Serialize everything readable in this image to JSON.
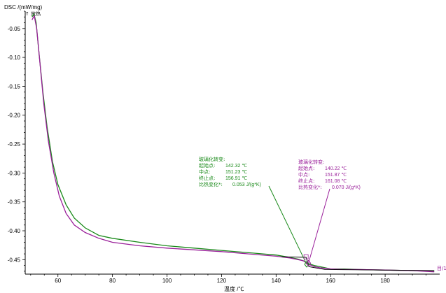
{
  "chart_data": {
    "type": "line",
    "ylabel": "DSC /(mW/mg)",
    "exo_label": "↑ 放热",
    "xlabel": "温度 /℃",
    "xlim": [
      48,
      200
    ],
    "ylim": [
      -0.475,
      -0.02
    ],
    "x_ticks": [
      60,
      80,
      100,
      120,
      140,
      160,
      180
    ],
    "y_ticks": [
      -0.05,
      -0.1,
      -0.15,
      -0.2,
      -0.25,
      -0.3,
      -0.35,
      -0.4,
      -0.45
    ],
    "x_tick_labels": [
      "60",
      "80",
      "100",
      "120",
      "140",
      "160",
      "180"
    ],
    "y_tick_labels": [
      "-0.05",
      "-0.10",
      "-0.15",
      "-0.20",
      "-0.25",
      "-0.30",
      "-0.35",
      "-0.40",
      "-0.45"
    ],
    "colors": {
      "green": "#1a8a1a",
      "purple": "#9a1f9a",
      "black": "#000000"
    },
    "series": [
      {
        "color": "#1a8a1a",
        "x": [
          50.5,
          51.2,
          52,
          53,
          54.5,
          56,
          58,
          60,
          63,
          66,
          70,
          75,
          80,
          90,
          100,
          110,
          120,
          130,
          140,
          145,
          148,
          150,
          151,
          152,
          154,
          156,
          158,
          160,
          165,
          170,
          180,
          190,
          198
        ],
        "y": [
          -0.03,
          -0.025,
          -0.04,
          -0.09,
          -0.16,
          -0.22,
          -0.28,
          -0.32,
          -0.355,
          -0.378,
          -0.395,
          -0.408,
          -0.413,
          -0.42,
          -0.426,
          -0.43,
          -0.434,
          -0.438,
          -0.442,
          -0.446,
          -0.449,
          -0.452,
          -0.455,
          -0.457,
          -0.46,
          -0.462,
          -0.464,
          -0.466,
          -0.466,
          -0.467,
          -0.468,
          -0.469,
          -0.47
        ]
      },
      {
        "color": "#9a1f9a",
        "x": [
          50.5,
          51.3,
          52.2,
          53.2,
          54.8,
          56.5,
          58.5,
          60.5,
          63,
          66,
          70,
          75,
          80,
          90,
          100,
          110,
          120,
          130,
          140,
          145,
          148,
          150,
          151,
          152,
          154,
          156,
          158,
          160,
          165,
          170,
          180,
          190,
          198
        ],
        "y": [
          -0.035,
          -0.028,
          -0.05,
          -0.1,
          -0.18,
          -0.245,
          -0.3,
          -0.34,
          -0.37,
          -0.39,
          -0.403,
          -0.413,
          -0.42,
          -0.426,
          -0.43,
          -0.433,
          -0.436,
          -0.44,
          -0.444,
          -0.447,
          -0.45,
          -0.452,
          -0.455,
          -0.458,
          -0.462,
          -0.464,
          -0.465,
          -0.466,
          -0.467,
          -0.467,
          -0.468,
          -0.469,
          -0.471
        ]
      }
    ],
    "annotations": [
      {
        "color": "#1a8a1a",
        "title": "玻璃化转变:",
        "rows": [
          {
            "label": "起始点:",
            "value": "142.32 ℃"
          },
          {
            "label": "中点:",
            "value": "151.23 ℃"
          },
          {
            "label": "终止点:",
            "value": "156.91 ℃"
          },
          {
            "label": "比热变化*:",
            "value": "0.053 J/(g*K)"
          }
        ],
        "pointer_x": 151.23,
        "pointer_y": -0.458
      },
      {
        "color": "#9a1f9a",
        "title": "玻璃化转变:",
        "rows": [
          {
            "label": "起始点:",
            "value": "140.22 ℃"
          },
          {
            "label": "中点:",
            "value": "151.87 ℃"
          },
          {
            "label": "终止点:",
            "value": "161.08 ℃"
          },
          {
            "label": "比热变化*:",
            "value": "0.070 J/(g*K)"
          }
        ],
        "pointer_x": 151.87,
        "pointer_y": -0.456
      }
    ],
    "corner_label": "目/1"
  }
}
